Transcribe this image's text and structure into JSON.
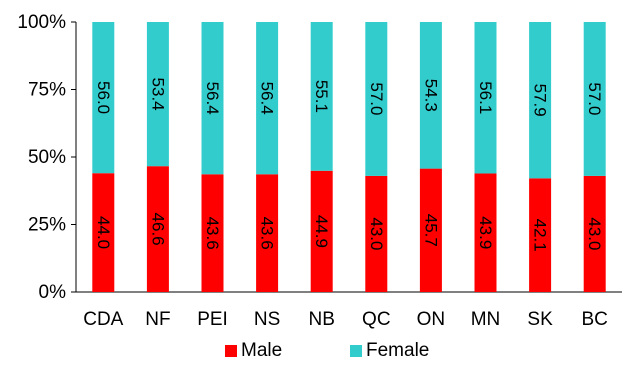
{
  "chart_data": {
    "type": "bar",
    "stacked": true,
    "percent_stacked": true,
    "categories": [
      "CDA",
      "NF",
      "PEI",
      "NS",
      "NB",
      "QC",
      "ON",
      "MN",
      "SK",
      "BC"
    ],
    "series": [
      {
        "name": "Male",
        "color": "#ff0000",
        "values": [
          44.0,
          46.6,
          43.6,
          43.6,
          44.9,
          43.0,
          45.7,
          43.9,
          42.1,
          43.0
        ],
        "labels": [
          "44.0",
          "46.6",
          "43.6",
          "43.6",
          "44.9",
          "43.0",
          "45.7",
          "43.9",
          "42.1",
          "43.0"
        ]
      },
      {
        "name": "Female",
        "color": "#33cccc",
        "values": [
          56.0,
          53.4,
          56.4,
          56.4,
          55.1,
          57.0,
          54.3,
          56.1,
          57.9,
          57.0
        ],
        "labels": [
          "56.0",
          "53.4",
          "56.4",
          "56.4",
          "55.1",
          "57.0",
          "54.3",
          "56.1",
          "57.9",
          "57.0"
        ]
      }
    ],
    "yticks": [
      "0%",
      "25%",
      "50%",
      "75%",
      "100%"
    ],
    "ylim": [
      0,
      100
    ],
    "grid": false,
    "legend": "bottom"
  }
}
